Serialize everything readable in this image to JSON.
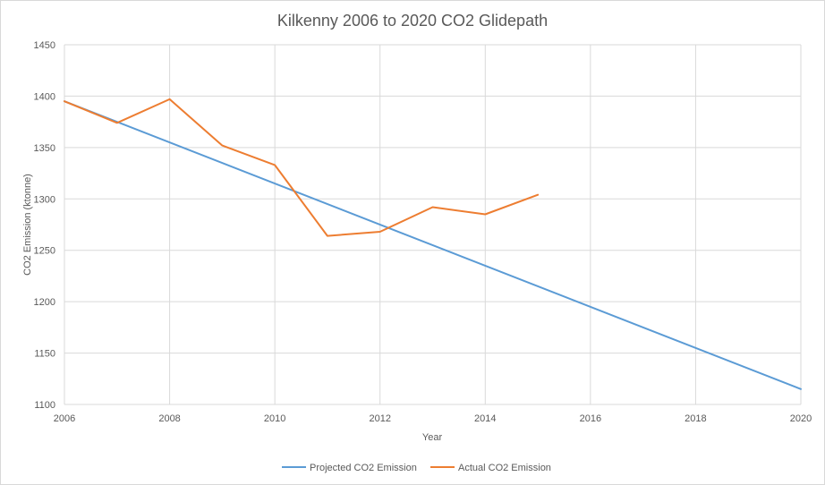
{
  "chart_data": {
    "type": "line",
    "title": "Kilkenny 2006 to 2020 CO2 Glidepath",
    "xlabel": "Year",
    "ylabel": "CO2 Emission (ktonne)",
    "xlim": [
      2006,
      2020
    ],
    "ylim": [
      1100,
      1450
    ],
    "x_ticks": [
      "2006",
      "2008",
      "2010",
      "2012",
      "2014",
      "2016",
      "2018",
      "2020"
    ],
    "y_ticks": [
      "1100",
      "1150",
      "1200",
      "1250",
      "1300",
      "1350",
      "1400",
      "1450"
    ],
    "grid": true,
    "legend_position": "bottom",
    "series": [
      {
        "name": "Projected CO2 Emission",
        "color": "#5b9bd5",
        "points": [
          [
            2006,
            1395
          ],
          [
            2020,
            1115
          ]
        ]
      },
      {
        "name": "Actual CO2 Emission",
        "color": "#ed7d31",
        "points": [
          [
            2006,
            1395
          ],
          [
            2007,
            1374
          ],
          [
            2008,
            1397
          ],
          [
            2009,
            1352
          ],
          [
            2010,
            1333
          ],
          [
            2011,
            1264
          ],
          [
            2012,
            1268
          ],
          [
            2013,
            1292
          ],
          [
            2014,
            1285
          ],
          [
            2015,
            1304
          ]
        ]
      }
    ]
  }
}
